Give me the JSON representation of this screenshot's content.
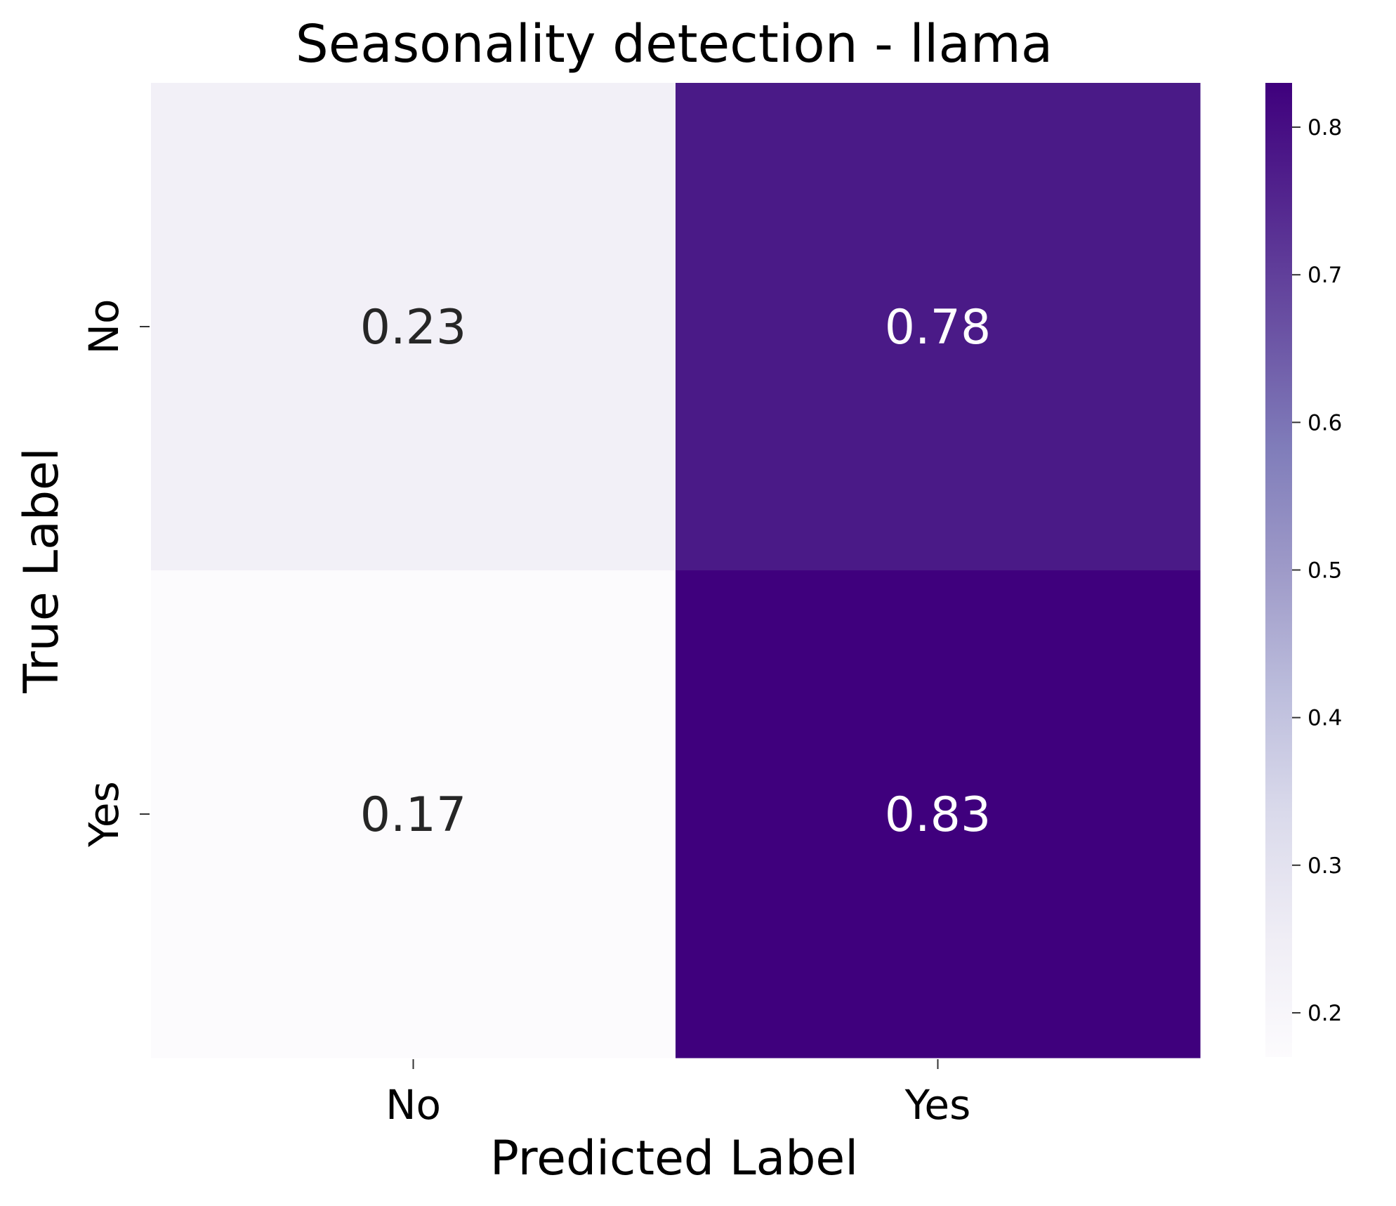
{
  "chart_data": {
    "type": "heatmap",
    "title": "Seasonality detection - llama",
    "xlabel": "Predicted Label",
    "ylabel": "True Label",
    "x_categories": [
      "No",
      "Yes"
    ],
    "y_categories": [
      "No",
      "Yes"
    ],
    "values": [
      [
        0.23,
        0.78
      ],
      [
        0.17,
        0.83
      ]
    ],
    "value_labels": [
      [
        "0.23",
        "0.78"
      ],
      [
        "0.17",
        "0.83"
      ]
    ],
    "colormap": "Purples",
    "colorbar": {
      "range": [
        0.17,
        0.83
      ],
      "ticks": [
        0.2,
        0.3,
        0.4,
        0.5,
        0.6,
        0.7,
        0.8
      ],
      "tick_labels": [
        "0.2",
        "0.3",
        "0.4",
        "0.5",
        "0.6",
        "0.7",
        "0.8"
      ]
    },
    "cell_colors": [
      [
        "#f2f0f7",
        "#4a1a87"
      ],
      [
        "#fcfbfd",
        "#3f007d"
      ]
    ],
    "text_colors": {
      "light": "#ffffff",
      "dark": "#262626"
    }
  }
}
